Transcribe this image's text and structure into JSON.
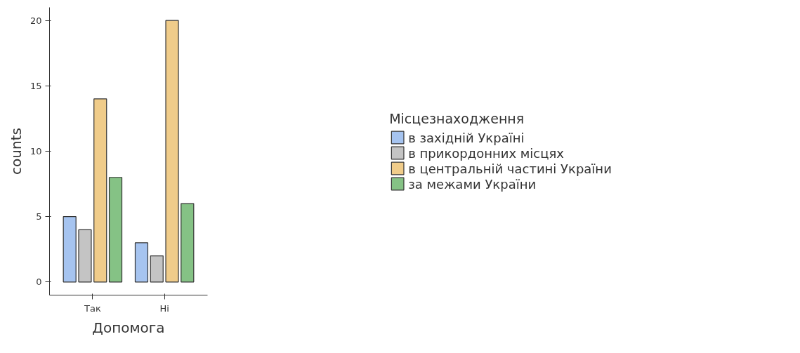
{
  "chart_data": {
    "type": "bar",
    "xlabel": "Допомога",
    "ylabel": "counts",
    "legend_title": "Місцезнаходження",
    "categories": [
      "Так",
      "Ні"
    ],
    "series": [
      {
        "name": "в західній Україні",
        "color": "#a6c4f0",
        "values": [
          5,
          3
        ]
      },
      {
        "name": "в прикордонних місцях",
        "color": "#c4c4c4",
        "values": [
          4,
          2
        ]
      },
      {
        "name": "в центральній частині України",
        "color": "#f0cc8a",
        "values": [
          14,
          20
        ]
      },
      {
        "name": "за межами України",
        "color": "#85c285",
        "values": [
          8,
          6
        ]
      }
    ],
    "ylim": [
      -1,
      21
    ],
    "yticks": [
      0,
      5,
      10,
      15,
      20
    ],
    "grid": false,
    "legend": "right"
  }
}
